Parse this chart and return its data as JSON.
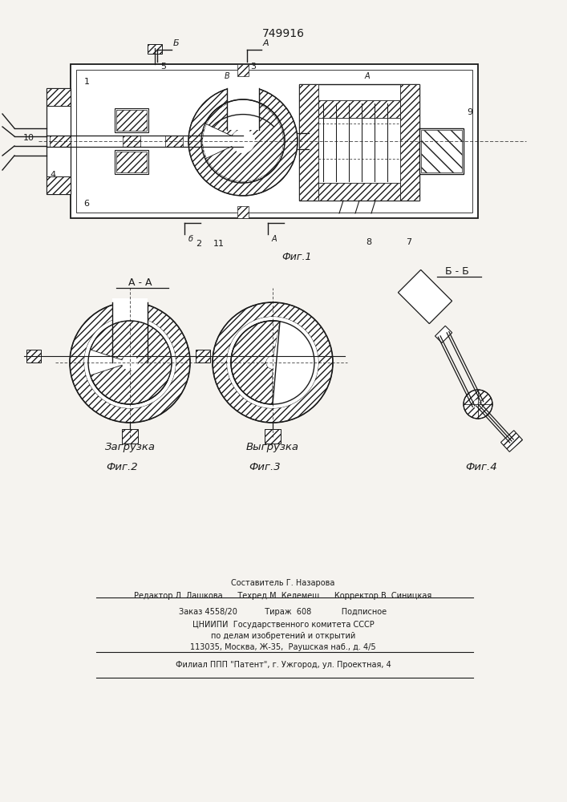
{
  "patent_number": "749916",
  "bg_color": "#f5f3ef",
  "line_color": "#1a1a1a",
  "fig1_label": "Фиг.1",
  "fig2_label": "Фиг.2",
  "fig3_label": "Фиг.3",
  "fig4_label": "Фиг.4",
  "section_aa": "А - А",
  "section_bb": "Б - Б",
  "caption_zagr": "Загрузка",
  "caption_vygr": "Выгрузка",
  "footer_line1": "Составитель Г. Назарова",
  "footer_line2": "Редактор Л. Лашкова      Техред М. Келемеш      Корректор В. Синицкая",
  "footer_line3": "Заказ 4558/20           Тираж  608            Подписное",
  "footer_line4": "ЦНИИПИ  Государственного комитета СССР",
  "footer_line5": "по делам изобретений и открытий",
  "footer_line6": "113035, Москва, Ж-35,  Раушская наб., д. 4/5",
  "footer_line7": "Филиал ППП \"Патент\", г. Ужгород, ул. Проектная, 4"
}
